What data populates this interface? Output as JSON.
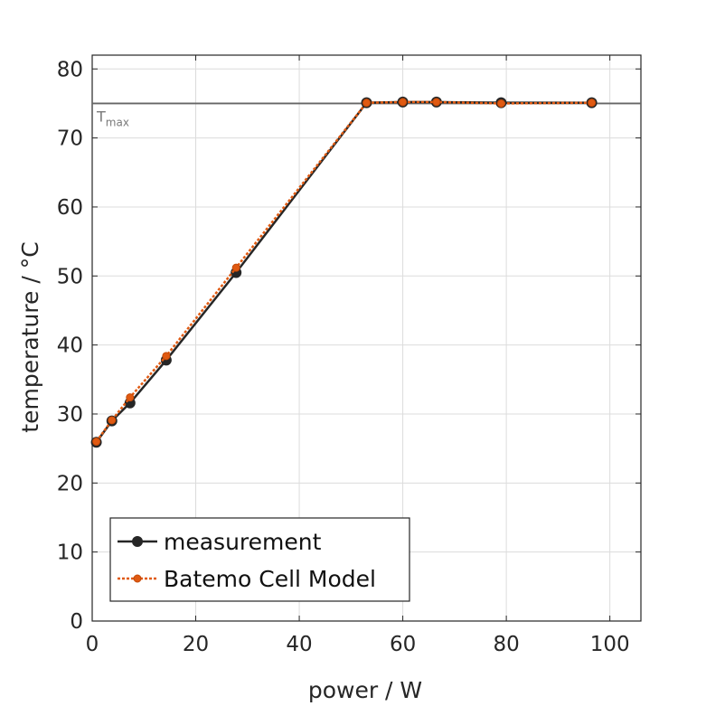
{
  "chart_data": {
    "type": "line",
    "xlabel": "power / W",
    "ylabel": "temperature / °C",
    "xlim": [
      0,
      106
    ],
    "ylim": [
      0,
      82
    ],
    "xticks": [
      0,
      20,
      40,
      60,
      80,
      100
    ],
    "yticks": [
      0,
      10,
      20,
      30,
      40,
      50,
      60,
      70,
      80
    ],
    "xtick_labels": [
      "0",
      "20",
      "40",
      "60",
      "80",
      "100"
    ],
    "ytick_labels": [
      "0",
      "10",
      "20",
      "30",
      "40",
      "50",
      "60",
      "70",
      "80"
    ],
    "grid": true,
    "legend_position": "bottom-left",
    "reference_line": {
      "y": 75,
      "label_main": "T",
      "label_sub": "max",
      "color": "#666666"
    },
    "series": [
      {
        "name": "measurement",
        "color": "#262626",
        "line_style": "solid",
        "marker": "circle",
        "x": [
          0.8,
          3.8,
          7.3,
          14.3,
          27.8,
          53.0,
          60.0,
          66.5,
          79.0,
          96.5
        ],
        "y": [
          25.9,
          29.0,
          31.6,
          37.8,
          50.5,
          75.1,
          75.2,
          75.2,
          75.1,
          75.1
        ]
      },
      {
        "name": "Batemo Cell Model",
        "color": "#e05a12",
        "line_style": "dotted",
        "marker": "circle",
        "x": [
          0.8,
          3.8,
          7.3,
          14.3,
          27.8,
          53.0,
          60.0,
          66.5,
          79.0,
          96.5
        ],
        "y": [
          26.0,
          29.1,
          32.4,
          38.4,
          51.2,
          75.1,
          75.2,
          75.2,
          75.0,
          75.1
        ]
      }
    ]
  }
}
